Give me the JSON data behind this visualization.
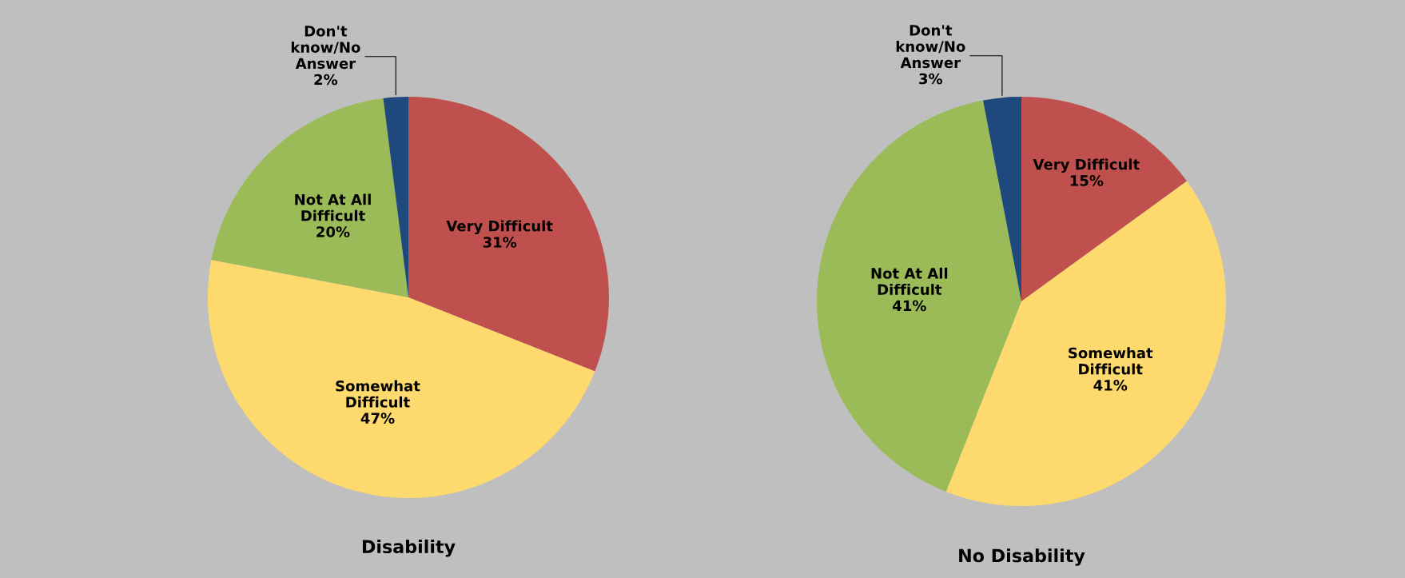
{
  "chart_data": [
    {
      "type": "pie",
      "title": "Disability",
      "categories": [
        "Very Difficult",
        "Somewhat\nDifficult",
        "Not At All\nDifficult",
        "Don't\nknow/No\nAnswer"
      ],
      "values": [
        31,
        47,
        20,
        2
      ],
      "value_labels": [
        "31%",
        "47%",
        "20%",
        "2%"
      ],
      "colors": [
        "#c0504d",
        "#fdd96e",
        "#9bbb59",
        "#1f497d"
      ],
      "legend": false
    },
    {
      "type": "pie",
      "title": "No Disability",
      "categories": [
        "Very Difficult",
        "Somewhat\nDifficult",
        "Not At All\nDifficult",
        "Don't\nknow/No\nAnswer"
      ],
      "values": [
        15,
        41,
        41,
        3
      ],
      "value_labels": [
        "15%",
        "41%",
        "41%",
        "3%"
      ],
      "colors": [
        "#c0504d",
        "#fdd96e",
        "#9bbb59",
        "#1f497d"
      ],
      "legend": false
    }
  ]
}
